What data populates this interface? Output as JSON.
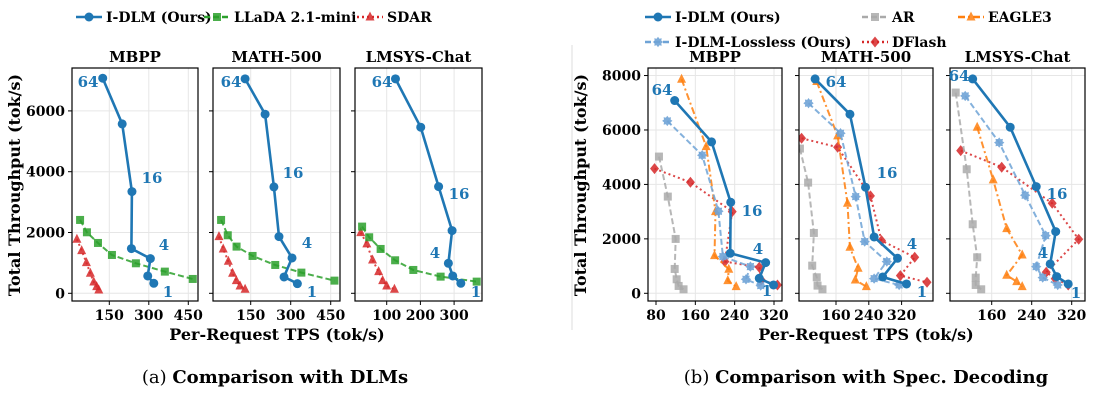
{
  "left_figure": {
    "caption_prefix": "(a)",
    "caption": "Comparison with DLMs",
    "ylabel": "Total Throughput (tok/s)",
    "xlabel": "Per-Request TPS (tok/s)",
    "yticks": [
      0,
      2000,
      4000,
      6000
    ],
    "legend": [
      {
        "name": "I-DLM (Ours)",
        "color": "#1f77b4",
        "marker": "circle",
        "line": "solid"
      },
      {
        "name": "LLaDA 2.1-mini",
        "color": "#2ca02c",
        "marker": "square",
        "line": "dashed"
      },
      {
        "name": "SDAR",
        "color": "#d62728",
        "marker": "triangle",
        "line": "dotted"
      }
    ]
  },
  "right_figure": {
    "caption_prefix": "(b)",
    "caption": "Comparison with Spec. Decoding",
    "ylabel": "Total Throughput (tok/s)",
    "xlabel": "Per-Request TPS (tok/s)",
    "yticks": [
      0,
      2000,
      4000,
      6000,
      8000
    ],
    "legend": [
      {
        "name": "I-DLM (Ours)",
        "color": "#1f77b4",
        "marker": "circle",
        "line": "solid"
      },
      {
        "name": "AR",
        "color": "#aaaaaa",
        "marker": "square",
        "line": "dashed"
      },
      {
        "name": "EAGLE3",
        "color": "#ff7f0e",
        "marker": "triangle",
        "line": "dashdot"
      },
      {
        "name": "I-DLM-Lossless (Ours)",
        "color": "#6fa3d6",
        "marker": "star",
        "line": "dashed"
      },
      {
        "name": "DFlash",
        "color": "#d62728",
        "marker": "diamond",
        "line": "dotted"
      }
    ]
  },
  "batch_labels": [
    "64",
    "16",
    "4",
    "1"
  ],
  "chart_data": [
    {
      "type": "line",
      "group": "left",
      "title": "MBPP",
      "xticks": [
        150,
        300,
        450
      ],
      "series": [
        {
          "name": "I-DLM (Ours)",
          "x": [
            125,
            199,
            236,
            234,
            306,
            296,
            319
          ],
          "y": [
            7075,
            5573,
            3346,
            1470,
            1141,
            570,
            329
          ]
        },
        {
          "name": "LLaDA 2.1-mini",
          "x": [
            39,
            65,
            107,
            160,
            251,
            361,
            467
          ],
          "y": [
            2413,
            2007,
            1656,
            1261,
            987,
            713,
            472
          ]
        },
        {
          "name": "SDAR",
          "x": [
            27,
            45,
            63,
            78,
            91,
            102,
            110
          ],
          "y": [
            1777,
            1404,
            1009,
            658,
            373,
            219,
            110
          ]
        }
      ]
    },
    {
      "type": "line",
      "group": "left",
      "title": "MATH-500",
      "xticks": [
        150,
        300,
        450
      ],
      "series": [
        {
          "name": "I-DLM (Ours)",
          "x": [
            129,
            204,
            237,
            256,
            305,
            275,
            325
          ],
          "y": [
            7054,
            5891,
            3499,
            1865,
            1163,
            538,
            318
          ]
        },
        {
          "name": "LLaDA 2.1-mini",
          "x": [
            39,
            64,
            97,
            157,
            242,
            340,
            464
          ],
          "y": [
            2413,
            1909,
            1536,
            1229,
            932,
            680,
            417
          ]
        },
        {
          "name": "SDAR",
          "x": [
            31,
            47,
            66,
            82,
            96,
            110,
            129
          ],
          "y": [
            1865,
            1459,
            1053,
            658,
            417,
            241,
            132
          ]
        }
      ]
    },
    {
      "type": "line",
      "group": "left",
      "title": "LMSYS-Chat",
      "xticks": [
        100,
        200,
        300
      ],
      "series": [
        {
          "name": "I-DLM (Ours)",
          "x": [
            126,
            201,
            254,
            294,
            283,
            296,
            320
          ],
          "y": [
            7054,
            5463,
            3510,
            2062,
            987,
            570,
            329
          ]
        },
        {
          "name": "LLaDA 2.1-mini",
          "x": [
            27,
            48,
            82,
            125,
            179,
            260,
            367
          ],
          "y": [
            2194,
            1843,
            1459,
            1086,
            768,
            548,
            384
          ]
        },
        {
          "name": "SDAR",
          "x": [
            23,
            41,
            58,
            76,
            88,
            100,
            123
          ],
          "y": [
            1997,
            1624,
            1097,
            713,
            417,
            241,
            132
          ]
        }
      ]
    },
    {
      "type": "line",
      "group": "right",
      "title": "MBPP",
      "xticks": [
        80,
        160,
        240,
        320
      ],
      "series": [
        {
          "name": "I-DLM (Ours)",
          "x": [
            118,
            193,
            232,
            231,
            303,
            290,
            319
          ],
          "y": [
            7081,
            5562,
            3344,
            1470,
            1127,
            551,
            306
          ]
        },
        {
          "name": "I-DLM-Lossless (Ours)",
          "x": [
            103,
            174,
            207,
            216,
            272,
            263,
            293
          ],
          "y": [
            6333,
            5072,
            3014,
            1348,
            980,
            515,
            282
          ]
        },
        {
          "name": "AR",
          "x": [
            86,
            104,
            120,
            118,
            122,
            126,
            136
          ],
          "y": [
            5023,
            3553,
            1997,
            894,
            515,
            270,
            147
          ]
        },
        {
          "name": "EAGLE3",
          "x": [
            132,
            182,
            201,
            199,
            228,
            226,
            243
          ],
          "y": [
            7865,
            5390,
            3001,
            1384,
            882,
            466,
            245
          ]
        },
        {
          "name": "DFlash",
          "x": [
            77,
            150,
            235,
            220,
            290,
            294,
            327
          ],
          "y": [
            4582,
            4079,
            3001,
            1164,
            955,
            490,
            306
          ]
        }
      ]
    },
    {
      "type": "line",
      "group": "right",
      "title": "MATH-500",
      "xticks": [
        160,
        240,
        320
      ],
      "series": [
        {
          "name": "I-DLM (Ours)",
          "x": [
            109,
            194,
            232,
            253,
            310,
            274,
            332
          ],
          "y": [
            7877,
            6578,
            3896,
            2070,
            1286,
            600,
            343
          ]
        },
        {
          "name": "I-DLM-Lossless (Ours)",
          "x": [
            93,
            171,
            208,
            230,
            284,
            253,
            314
          ],
          "y": [
            6983,
            5880,
            3553,
            1899,
            1164,
            539,
            306
          ]
        },
        {
          "name": "AR",
          "x": [
            72,
            92,
            106,
            102,
            113,
            115,
            127
          ],
          "y": [
            5317,
            4067,
            2217,
            1017,
            588,
            282,
            147
          ]
        },
        {
          "name": "EAGLE3",
          "x": [
            113,
            164,
            188,
            194,
            214,
            207,
            234
          ],
          "y": [
            7779,
            5782,
            3308,
            1691,
            919,
            490,
            245
          ]
        },
        {
          "name": "DFlash",
          "x": [
            76,
            164,
            244,
            271,
            352,
            317,
            382
          ],
          "y": [
            5696,
            5366,
            3577,
            1936,
            1323,
            649,
            404
          ]
        }
      ]
    },
    {
      "type": "line",
      "group": "right",
      "title": "LMSYS-Chat",
      "xticks": [
        160,
        240,
        320
      ],
      "series": [
        {
          "name": "I-DLM (Ours)",
          "x": [
            122,
            197,
            249,
            288,
            277,
            290,
            313
          ],
          "y": [
            7877,
            6101,
            3920,
            2266,
            1078,
            613,
            343
          ]
        },
        {
          "name": "I-DLM-Lossless (Ours)",
          "x": [
            107,
            175,
            227,
            268,
            249,
            262,
            292
          ],
          "y": [
            7252,
            5537,
            3602,
            2119,
            980,
            576,
            306
          ]
        },
        {
          "name": "AR",
          "x": [
            88,
            110,
            122,
            131,
            128,
            128,
            139
          ],
          "y": [
            7375,
            4557,
            2536,
            1323,
            576,
            306,
            147
          ]
        },
        {
          "name": "EAGLE3",
          "x": [
            131,
            163,
            190,
            221,
            190,
            210,
            221
          ],
          "y": [
            6101,
            4165,
            2377,
            1409,
            662,
            429,
            245
          ]
        },
        {
          "name": "DFlash",
          "x": [
            98,
            180,
            281,
            334,
            269,
            287,
            313
          ],
          "y": [
            5243,
            4631,
            3308,
            1985,
            772,
            539,
            306
          ]
        }
      ]
    }
  ]
}
